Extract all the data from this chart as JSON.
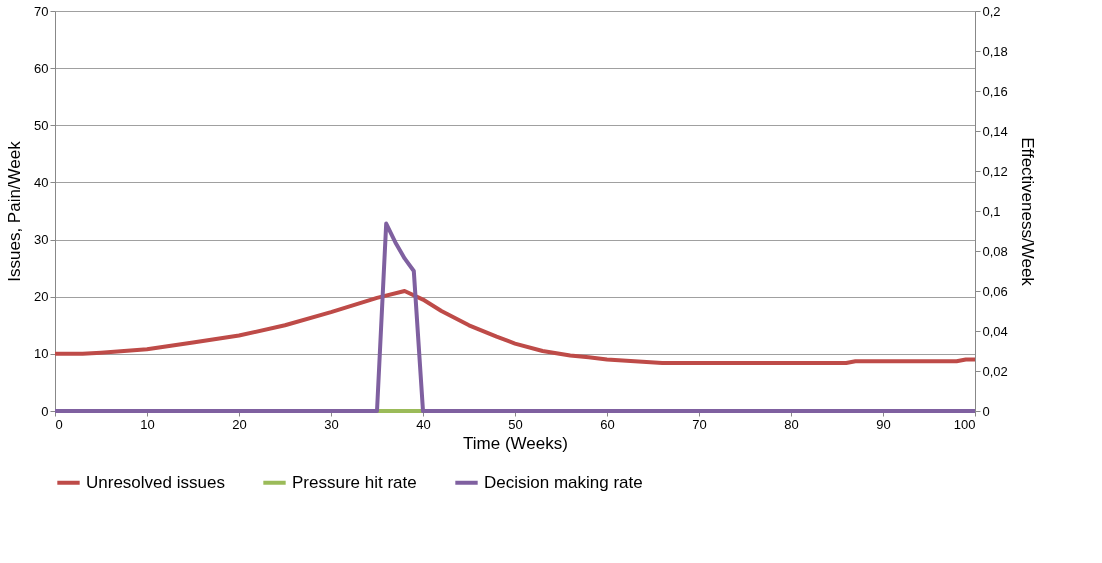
{
  "chart_data": {
    "type": "line",
    "xlabel": "Time (Weeks)",
    "ylabel": "Issues, Pain/Week",
    "y2label": "Effectiveness/Week",
    "xlim": [
      0,
      100
    ],
    "xticks": [
      0,
      10,
      20,
      30,
      40,
      50,
      60,
      70,
      80,
      90,
      100
    ],
    "ylim": [
      0,
      70
    ],
    "yticks": [
      0,
      10,
      20,
      30,
      40,
      50,
      60,
      70
    ],
    "y2lim": [
      0,
      0.2
    ],
    "y2ticks": [
      {
        "value": 0,
        "label": "0"
      },
      {
        "value": 0.02,
        "label": "0,02"
      },
      {
        "value": 0.04,
        "label": "0,04"
      },
      {
        "value": 0.06,
        "label": "0,06"
      },
      {
        "value": 0.08,
        "label": "0,08"
      },
      {
        "value": 0.1,
        "label": "0,1"
      },
      {
        "value": 0.12,
        "label": "0,12"
      },
      {
        "value": 0.14,
        "label": "0,14"
      },
      {
        "value": 0.16,
        "label": "0,16"
      },
      {
        "value": 0.18,
        "label": "0,18"
      },
      {
        "value": 0.2,
        "label": "0,2"
      }
    ],
    "grid": "y",
    "legend": "bottom",
    "marker": "none",
    "line_style": "solid",
    "series": [
      {
        "name": "Unresolved issues",
        "color": "#be4b48",
        "x": [
          0,
          3,
          5,
          10,
          15,
          20,
          25,
          30,
          35,
          38,
          40,
          42,
          45,
          48,
          50,
          53,
          56,
          58,
          60,
          63,
          66,
          70,
          80,
          86,
          87,
          98,
          99,
          100
        ],
        "values": [
          10,
          10,
          10.2,
          10.8,
          12,
          13.2,
          15,
          17.3,
          19.8,
          21,
          19.5,
          17.5,
          15,
          13,
          11.8,
          10.5,
          9.7,
          9.4,
          9,
          8.7,
          8.4,
          8.4,
          8.4,
          8.4,
          8.7,
          8.7,
          9,
          9
        ]
      },
      {
        "name": "Pressure hit rate",
        "color": "#9bbb59",
        "axis": "y2",
        "x": [
          35,
          40
        ],
        "values": [
          0,
          0
        ]
      },
      {
        "name": "Decision making rate",
        "color": "#7f60a0",
        "x": [
          0,
          35,
          36,
          37,
          38,
          39,
          40,
          100
        ],
        "values": [
          0,
          0,
          32.8,
          29.5,
          26.7,
          24.5,
          0,
          0
        ]
      }
    ]
  }
}
